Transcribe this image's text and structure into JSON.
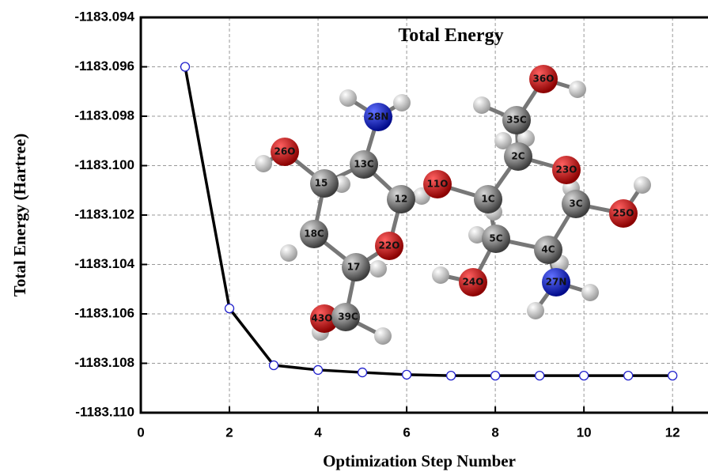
{
  "chart_data": {
    "type": "line",
    "title": "Total Energy",
    "x_label": "Optimization Step Number",
    "y_label": "Total Energy (Hartree)",
    "x": [
      1,
      2,
      3,
      4,
      5,
      6,
      7,
      8,
      9,
      10,
      11,
      12
    ],
    "series": [
      {
        "name": "Total Energy",
        "color": "#000000",
        "marker_color": "#2222cc",
        "values": [
          -1183.096,
          -1183.10578,
          -1183.10808,
          -1183.10827,
          -1183.10837,
          -1183.10846,
          -1183.1085,
          -1183.1085,
          -1183.1085,
          -1183.1085,
          -1183.1085,
          -1183.1085
        ]
      }
    ],
    "xlim": [
      0,
      12.8
    ],
    "xticks": [
      0,
      2,
      4,
      6,
      8,
      10,
      12
    ],
    "ylim": [
      -1183.11,
      -1183.094
    ],
    "yticks": [
      {
        "value": -1183.11,
        "label": "-1183.110"
      },
      -1183.108,
      -1183.106,
      -1183.104,
      -1183.102,
      {
        "value": -1183.1,
        "label": "-1183.100"
      },
      -1183.098,
      -1183.096,
      -1183.094
    ],
    "grid": true,
    "annotations": [
      "36O",
      "35C",
      "28N",
      "2C",
      "26O",
      "13C",
      "23O",
      "15",
      "11O",
      "12",
      "1C",
      "3C",
      "25O",
      "18C",
      "5C",
      "4C",
      "22O",
      "17",
      "24O",
      "27N",
      "43O",
      "39C"
    ]
  }
}
